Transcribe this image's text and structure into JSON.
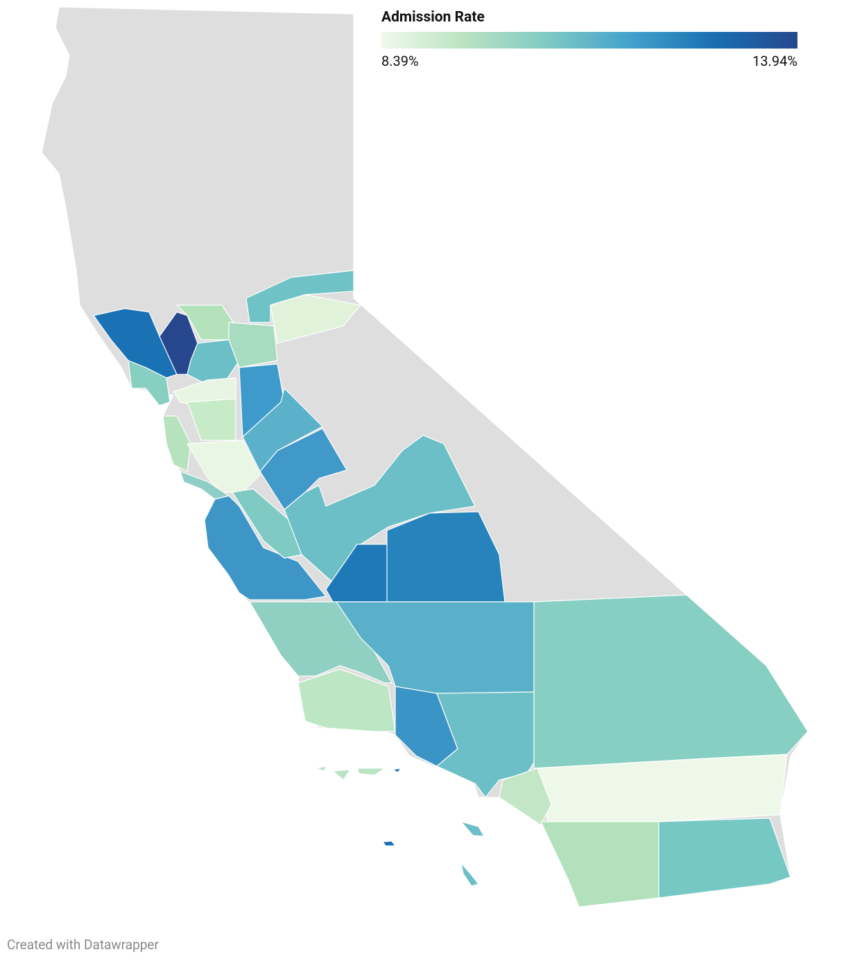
{
  "legend": {
    "title": "Admission Rate",
    "min": {
      "value": 8.39,
      "label": "8.39%"
    },
    "max": {
      "value": 13.94,
      "label": "13.94%"
    },
    "colors": [
      "#f1f9ec",
      "#b9e3c2",
      "#7fc9c4",
      "#42a2cc",
      "#1a6fb1",
      "#26478e"
    ]
  },
  "footer": "Created with Datawrapper"
}
